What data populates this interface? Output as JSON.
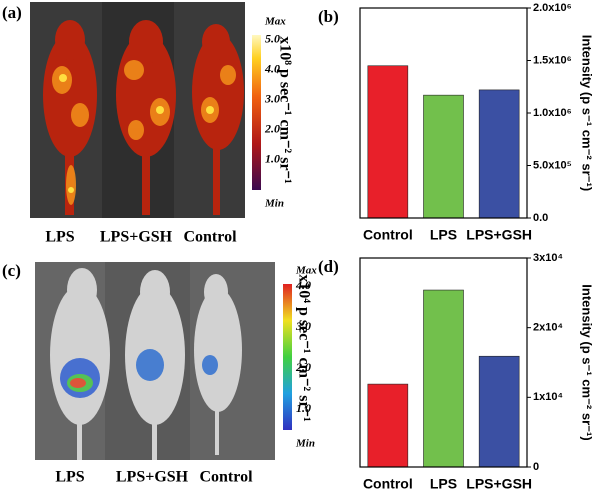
{
  "panels": [
    {
      "label": "(a)",
      "mice": [
        "LPS",
        "LPS+GSH",
        "Control"
      ],
      "colorbar": {
        "max_label": "Max",
        "min_label": "Min",
        "unit": "x10⁸ p sec⁻¹ cm⁻² sr⁻¹",
        "clim": [
          0,
          5.15
        ],
        "ticks": [
          {
            "value": 5,
            "label": "5.0"
          },
          {
            "value": 4,
            "label": "4.0"
          },
          {
            "value": 3,
            "label": "3.0"
          },
          {
            "value": 2,
            "label": "2.0"
          },
          {
            "value": 1,
            "label": "1.0"
          }
        ]
      }
    },
    {
      "label": "(c)",
      "mice": [
        "LPS",
        "LPS+GSH",
        "Control"
      ],
      "colorbar": {
        "max_label": "Max",
        "min_label": "Min",
        "unit": "x10⁴ p sec⁻¹ cm⁻² sr⁻¹",
        "clim": [
          0.5,
          4.05
        ],
        "ticks": [
          {
            "value": 4,
            "label": "4.0"
          },
          {
            "value": 3,
            "label": "3.0"
          },
          {
            "value": 2,
            "label": "2.0"
          },
          {
            "value": 1,
            "label": "1.0"
          }
        ]
      }
    }
  ],
  "chart_data": [
    {
      "type": "bar",
      "label": "(b)",
      "y_label": "Intensity (p s⁻¹ cm⁻² sr⁻¹)",
      "categories": [
        "Control",
        "LPS",
        "LPS+GSH"
      ],
      "values": [
        1450000,
        1170000,
        1220000
      ],
      "colors": [
        "#e8202a",
        "#72c04c",
        "#3b50a3"
      ],
      "ylim": [
        0,
        2000000
      ],
      "yticks": [
        {
          "value": 0,
          "label": "0.0"
        },
        {
          "value": 500000,
          "label": "5.0x10⁵"
        },
        {
          "value": 1000000,
          "label": "1.0x10⁶"
        },
        {
          "value": 1500000,
          "label": "1.5x10⁶"
        },
        {
          "value": 2000000,
          "label": "2.0x10⁶"
        }
      ]
    },
    {
      "type": "bar",
      "label": "(d)",
      "y_label": "Intensity (p s⁻¹ cm⁻² sr⁻¹)",
      "categories": [
        "Control",
        "LPS",
        "LPS+GSH"
      ],
      "values": [
        11900,
        25400,
        15900
      ],
      "colors": [
        "#e8202a",
        "#72c04c",
        "#3b50a3"
      ],
      "ylim": [
        0,
        30000
      ],
      "yticks": [
        0,
        {
          "value": 10000,
          "label": "1x10⁴"
        },
        {
          "value": 20000,
          "label": "2x10⁴"
        },
        {
          "value": 30000,
          "label": "3x10⁴"
        }
      ]
    }
  ]
}
